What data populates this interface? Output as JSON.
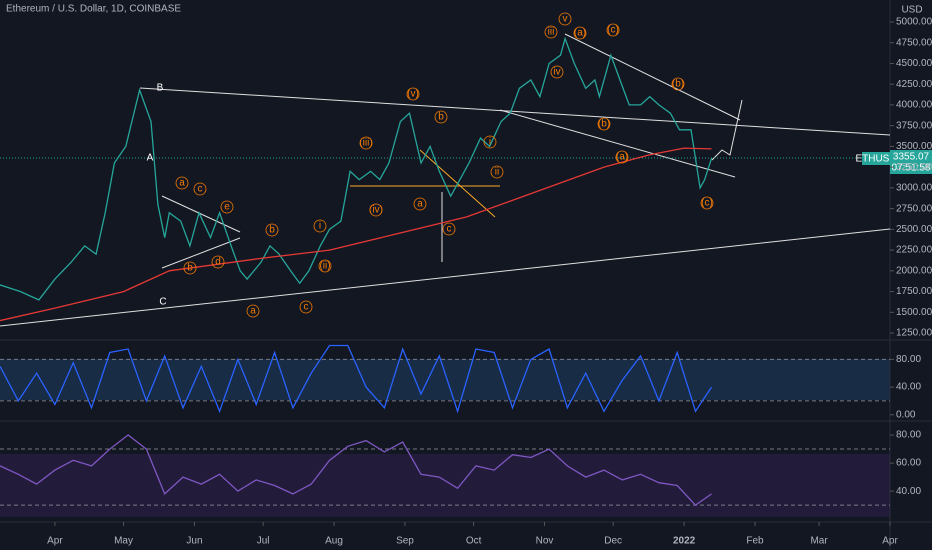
{
  "chart_data": [
    {
      "type": "line",
      "title": "Ethereum / U.S. Dollar, 1D, COINBASE",
      "y_unit": "USD",
      "ticker": "ETHUSD",
      "last_price": {
        "value": 3355.07,
        "label": "3355.07"
      },
      "countdown": "07:51:58",
      "xlim": [
        -24,
        365
      ],
      "ylim": [
        1166,
        5265
      ],
      "xticks": [
        {
          "value": 0,
          "label": "Apr"
        },
        {
          "value": 30,
          "label": "May"
        },
        {
          "value": 61,
          "label": "Jun"
        },
        {
          "value": 91,
          "label": "Jul"
        },
        {
          "value": 122,
          "label": "Aug"
        },
        {
          "value": 153,
          "label": "Sep"
        },
        {
          "value": 183,
          "label": "Oct"
        },
        {
          "value": 214,
          "label": "Nov"
        },
        {
          "value": 244,
          "label": "Dec"
        },
        {
          "value": 275,
          "label": "2022"
        },
        {
          "value": 306,
          "label": "Feb"
        },
        {
          "value": 334,
          "label": "Mar"
        },
        {
          "value": 365,
          "label": "Apr"
        }
      ],
      "yticks": [
        {
          "value": 1250,
          "label": "1250.00"
        },
        {
          "value": 1500,
          "label": "1500.00"
        },
        {
          "value": 1750,
          "label": "1750.00"
        },
        {
          "value": 2000,
          "label": "2000.00"
        },
        {
          "value": 2250,
          "label": "2250.00"
        },
        {
          "value": 2500,
          "label": "2500.00"
        },
        {
          "value": 2750,
          "label": "2750.00"
        },
        {
          "value": 3000,
          "label": "3000.00"
        },
        {
          "value": 3250,
          "label": "3250.00"
        },
        {
          "value": 3500,
          "label": "3500.00"
        },
        {
          "value": 3750,
          "label": "3750.00"
        },
        {
          "value": 4000,
          "label": "4000.00"
        },
        {
          "value": 4250,
          "label": "4250.00"
        },
        {
          "value": 4500,
          "label": "4500.00"
        },
        {
          "value": 4750,
          "label": "4750.00"
        },
        {
          "value": 5000,
          "label": "5000.00"
        }
      ],
      "series": [
        {
          "color": "#26a69a",
          "x": [
            -24,
            -15,
            -7,
            0,
            7,
            13,
            18,
            22,
            26,
            31,
            37,
            42,
            45,
            48,
            50,
            55,
            59,
            63,
            68,
            72,
            77,
            81,
            84,
            90,
            94,
            98,
            103,
            107,
            111,
            116,
            120,
            125,
            129,
            133,
            138,
            142,
            146,
            151,
            155,
            160,
            164,
            168,
            173,
            177,
            181,
            186,
            190,
            195,
            199,
            203,
            208,
            212,
            216,
            221,
            223,
            227,
            232,
            236,
            238,
            243,
            247,
            251,
            256,
            260,
            264,
            269,
            273,
            278,
            282,
            284,
            287
          ],
          "values": [
            1830,
            1750,
            1650,
            1900,
            2100,
            2300,
            2200,
            2700,
            3300,
            3500,
            4180,
            3800,
            2800,
            2400,
            2700,
            2600,
            2300,
            2700,
            2400,
            2700,
            2300,
            2000,
            1900,
            2100,
            2300,
            2200,
            2000,
            1850,
            2000,
            2300,
            2500,
            2600,
            3200,
            3100,
            3200,
            3100,
            3300,
            3800,
            3900,
            3300,
            3500,
            3200,
            2900,
            3100,
            3300,
            3600,
            3500,
            3800,
            3900,
            4200,
            4300,
            4100,
            4500,
            4600,
            4800,
            4500,
            4200,
            4300,
            4100,
            4600,
            4300,
            4000,
            4000,
            4100,
            4000,
            3900,
            3700,
            3700,
            3000,
            3100,
            3355
          ]
        },
        {
          "color": "#e53935",
          "x": [
            -24,
            0,
            30,
            50,
            90,
            120,
            150,
            180,
            210,
            240,
            260,
            275,
            287
          ],
          "values": [
            1400,
            1550,
            1750,
            2000,
            2150,
            2250,
            2450,
            2650,
            2950,
            3250,
            3400,
            3480,
            3470
          ]
        }
      ],
      "annotations": [
        "B",
        "A",
        "C",
        "a",
        "c",
        "e",
        "b",
        "d",
        "a",
        "b",
        "c",
        "(iii)",
        "(iv)",
        "(v)",
        "b",
        "a",
        "c",
        "i",
        "(ii)",
        "i",
        "ii",
        "iii",
        "iv",
        "v",
        "(a)",
        "(c)",
        "(b)",
        "(b)",
        "(a)",
        "(c)"
      ]
    },
    {
      "type": "line",
      "xlim": [
        -24,
        365
      ],
      "ylim": [
        -9,
        108
      ],
      "yticks": [
        {
          "value": 0,
          "label": "0.00"
        },
        {
          "value": 40,
          "label": "40.00"
        },
        {
          "value": 80,
          "label": "80.00"
        }
      ],
      "bands": [
        20,
        80
      ],
      "series": [
        {
          "color": "#2962ff",
          "x": [
            -24,
            -16,
            -8,
            0,
            8,
            16,
            24,
            32,
            40,
            48,
            56,
            64,
            72,
            80,
            88,
            96,
            104,
            112,
            120,
            128,
            136,
            144,
            152,
            160,
            168,
            176,
            184,
            192,
            200,
            208,
            216,
            224,
            232,
            240,
            248,
            256,
            264,
            272,
            280,
            287
          ],
          "values": [
            70,
            20,
            60,
            15,
            75,
            10,
            90,
            95,
            20,
            85,
            10,
            70,
            5,
            80,
            15,
            90,
            10,
            60,
            100,
            100,
            40,
            10,
            95,
            30,
            85,
            5,
            95,
            90,
            10,
            80,
            95,
            10,
            60,
            5,
            50,
            85,
            20,
            90,
            5,
            40
          ]
        }
      ]
    },
    {
      "type": "line",
      "xlim": [
        -24,
        365
      ],
      "ylim": [
        18,
        90
      ],
      "yticks": [
        {
          "value": 40,
          "label": "40.00"
        },
        {
          "value": 60,
          "label": "60.00"
        },
        {
          "value": 80,
          "label": "80.00"
        }
      ],
      "bands": [
        30,
        70
      ],
      "series": [
        {
          "color": "#7e57c2",
          "x": [
            -24,
            -16,
            -8,
            0,
            8,
            16,
            24,
            32,
            40,
            48,
            56,
            64,
            72,
            80,
            88,
            96,
            104,
            112,
            120,
            128,
            136,
            144,
            152,
            160,
            168,
            176,
            184,
            192,
            200,
            208,
            216,
            224,
            232,
            240,
            248,
            256,
            264,
            272,
            280,
            287
          ],
          "values": [
            58,
            52,
            45,
            55,
            62,
            58,
            70,
            80,
            70,
            38,
            50,
            45,
            52,
            40,
            48,
            44,
            38,
            45,
            62,
            72,
            76,
            68,
            75,
            52,
            50,
            42,
            58,
            55,
            66,
            64,
            70,
            58,
            50,
            55,
            48,
            52,
            46,
            44,
            30,
            38
          ]
        }
      ]
    }
  ]
}
